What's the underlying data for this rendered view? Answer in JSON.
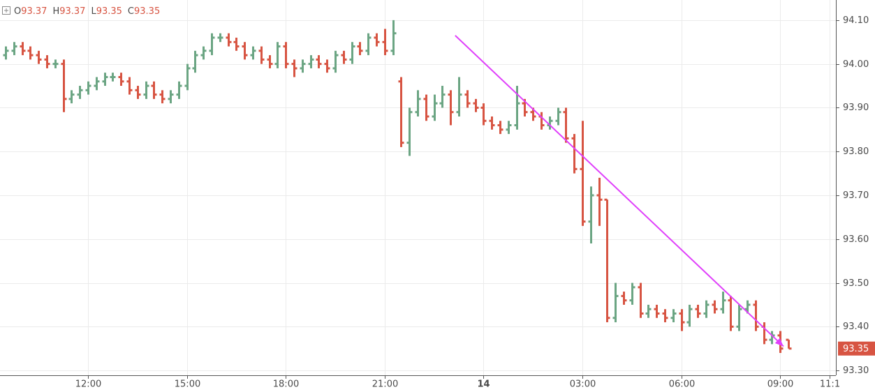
{
  "chart_data": {
    "type": "ohlc",
    "ohlc_labels": [
      "O",
      "H",
      "L",
      "C"
    ],
    "x": [
      9.5,
      9.75,
      10,
      10.25,
      10.5,
      10.75,
      11,
      11.25,
      11.5,
      11.75,
      12,
      12.25,
      12.5,
      12.75,
      13,
      13.25,
      13.5,
      13.75,
      14,
      14.25,
      14.5,
      14.75,
      15,
      15.25,
      15.5,
      15.75,
      16,
      16.25,
      16.5,
      16.75,
      17,
      17.25,
      17.5,
      17.75,
      18,
      18.25,
      18.5,
      18.75,
      19,
      19.25,
      19.5,
      19.75,
      20,
      20.25,
      20.5,
      20.75,
      21,
      21.25,
      21.5,
      21.75,
      22,
      22.25,
      22.5,
      22.75,
      23,
      23.25,
      23.5,
      23.75,
      24,
      24.25,
      24.5,
      24.75,
      25,
      25.25,
      25.5,
      25.75,
      26,
      26.25,
      26.5,
      26.75,
      27,
      27.25,
      27.5,
      27.75,
      28,
      28.25,
      28.5,
      28.75,
      29,
      29.25,
      29.5,
      29.75,
      30,
      30.25,
      30.5,
      30.75,
      31,
      31.25,
      31.5,
      31.75,
      32,
      32.25,
      32.5,
      32.75,
      33,
      33.25
    ],
    "open": [
      94.02,
      94.03,
      94.04,
      94.03,
      94.02,
      94.01,
      94.0,
      94.0,
      93.92,
      93.93,
      93.94,
      93.95,
      93.96,
      93.97,
      93.97,
      93.96,
      93.94,
      93.93,
      93.95,
      93.93,
      93.92,
      93.93,
      93.95,
      93.99,
      94.02,
      94.03,
      94.06,
      94.06,
      94.05,
      94.04,
      94.02,
      94.03,
      94.01,
      94.0,
      94.04,
      94.0,
      93.99,
      94.0,
      94.01,
      94.0,
      93.99,
      94.02,
      94.01,
      94.04,
      94.03,
      94.06,
      94.05,
      94.03,
      93.96,
      93.82,
      93.89,
      93.92,
      93.88,
      93.91,
      93.93,
      93.89,
      93.93,
      93.91,
      93.9,
      93.87,
      93.86,
      93.85,
      93.86,
      93.91,
      93.89,
      93.88,
      93.86,
      93.87,
      93.89,
      93.83,
      93.76,
      93.64,
      93.7,
      93.69,
      93.42,
      93.47,
      93.46,
      93.49,
      93.43,
      93.44,
      93.43,
      93.42,
      93.43,
      93.41,
      93.44,
      93.43,
      93.45,
      93.44,
      93.46,
      93.4,
      93.44,
      93.45,
      93.4,
      93.37,
      93.38,
      93.37
    ],
    "high": [
      94.04,
      94.05,
      94.05,
      94.04,
      94.03,
      94.02,
      94.01,
      94.01,
      93.94,
      93.95,
      93.96,
      93.97,
      93.98,
      93.98,
      93.98,
      93.97,
      93.95,
      93.96,
      93.96,
      93.94,
      93.94,
      93.96,
      94.0,
      94.03,
      94.04,
      94.07,
      94.07,
      94.07,
      94.06,
      94.05,
      94.04,
      94.04,
      94.02,
      94.05,
      94.05,
      94.01,
      94.01,
      94.02,
      94.02,
      94.01,
      94.03,
      94.03,
      94.05,
      94.05,
      94.07,
      94.07,
      94.08,
      94.1,
      93.97,
      93.9,
      93.94,
      93.93,
      93.93,
      93.95,
      93.94,
      93.97,
      93.94,
      93.92,
      93.91,
      93.88,
      93.87,
      93.87,
      93.95,
      93.92,
      93.9,
      93.89,
      93.88,
      93.9,
      93.9,
      93.84,
      93.87,
      93.72,
      93.74,
      93.69,
      93.5,
      93.48,
      93.5,
      93.5,
      93.45,
      93.45,
      93.44,
      93.44,
      93.44,
      93.45,
      93.45,
      93.46,
      93.46,
      93.48,
      93.47,
      93.45,
      93.46,
      93.46,
      93.41,
      93.39,
      93.39,
      93.37
    ],
    "low": [
      94.01,
      94.02,
      94.02,
      94.01,
      94.0,
      93.99,
      93.99,
      93.89,
      93.91,
      93.92,
      93.93,
      93.94,
      93.95,
      93.96,
      93.95,
      93.93,
      93.92,
      93.92,
      93.92,
      93.91,
      93.91,
      93.92,
      93.94,
      93.98,
      94.01,
      94.02,
      94.05,
      94.04,
      94.03,
      94.01,
      94.01,
      94.0,
      93.99,
      93.99,
      93.99,
      93.97,
      93.98,
      93.99,
      93.99,
      93.98,
      93.98,
      94.0,
      94.0,
      94.02,
      94.02,
      94.04,
      94.02,
      94.02,
      93.81,
      93.79,
      93.88,
      93.87,
      93.87,
      93.9,
      93.86,
      93.88,
      93.9,
      93.89,
      93.86,
      93.85,
      93.84,
      93.84,
      93.85,
      93.88,
      93.87,
      93.85,
      93.85,
      93.86,
      93.82,
      93.75,
      93.63,
      93.59,
      93.63,
      93.41,
      93.41,
      93.45,
      93.45,
      93.42,
      93.42,
      93.42,
      93.41,
      93.41,
      93.39,
      93.4,
      93.42,
      93.42,
      93.43,
      93.43,
      93.39,
      93.39,
      93.43,
      93.39,
      93.36,
      93.36,
      93.34,
      93.35
    ],
    "close": [
      94.03,
      94.04,
      94.03,
      94.02,
      94.01,
      94.0,
      94.0,
      93.92,
      93.93,
      93.94,
      93.95,
      93.96,
      93.97,
      93.97,
      93.96,
      93.94,
      93.93,
      93.95,
      93.93,
      93.92,
      93.93,
      93.95,
      93.99,
      94.02,
      94.03,
      94.06,
      94.06,
      94.05,
      94.04,
      94.02,
      94.03,
      94.01,
      94.0,
      94.04,
      94.0,
      93.99,
      94.0,
      94.01,
      94.0,
      93.99,
      94.02,
      94.01,
      94.04,
      94.03,
      94.06,
      94.05,
      94.03,
      94.07,
      93.82,
      93.89,
      93.92,
      93.88,
      93.91,
      93.93,
      93.89,
      93.93,
      93.91,
      93.9,
      93.87,
      93.86,
      93.85,
      93.86,
      93.91,
      93.89,
      93.88,
      93.86,
      93.87,
      93.89,
      93.83,
      93.76,
      93.64,
      93.7,
      93.69,
      93.42,
      93.47,
      93.46,
      93.49,
      93.43,
      93.44,
      93.43,
      93.42,
      93.43,
      93.41,
      93.44,
      93.43,
      93.45,
      93.44,
      93.46,
      93.4,
      93.44,
      93.45,
      93.4,
      93.37,
      93.38,
      93.35,
      93.35
    ],
    "up_color": "#6ba583",
    "down_color": "#d75442",
    "xlim": [
      9.33,
      34.69
    ],
    "xticks": [
      {
        "value": 12,
        "label": "12:00"
      },
      {
        "value": 15,
        "label": "15:00"
      },
      {
        "value": 18,
        "label": "18:00"
      },
      {
        "value": 21,
        "label": "21:00"
      },
      {
        "value": 24,
        "label": "14"
      },
      {
        "value": 27,
        "label": "03:00"
      },
      {
        "value": 30,
        "label": "06:00"
      },
      {
        "value": 33,
        "label": "09:00"
      },
      {
        "value": 34.5,
        "label": "11:1"
      }
    ],
    "ylim": [
      93.289,
      94.146
    ],
    "yticks": [
      {
        "value": 93.3,
        "label": "93.30"
      },
      {
        "value": 93.4,
        "label": "93.40"
      },
      {
        "value": 93.5,
        "label": "93.50"
      },
      {
        "value": 93.6,
        "label": "93.60"
      },
      {
        "value": 93.7,
        "label": "93.70"
      },
      {
        "value": 93.8,
        "label": "93.80"
      },
      {
        "value": 93.9,
        "label": "93.90"
      },
      {
        "value": 94.0,
        "label": "94.00"
      },
      {
        "value": 94.1,
        "label": "94.10"
      }
    ],
    "grid": true,
    "trendline": {
      "x": [
        23.14,
        33.1
      ],
      "y": [
        94.065,
        93.355
      ],
      "color": "#e040fb"
    }
  }
}
